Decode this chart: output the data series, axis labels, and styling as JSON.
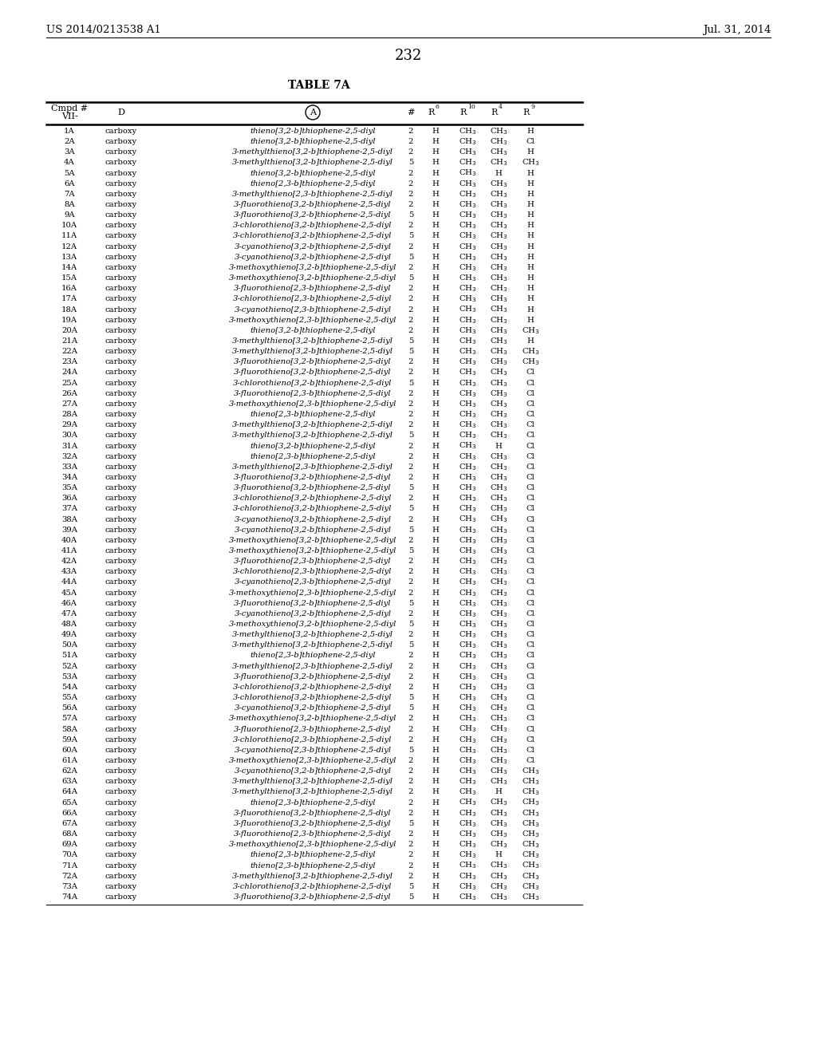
{
  "header_left": "US 2014/0213538 A1",
  "header_right": "Jul. 31, 2014",
  "page_number": "232",
  "table_title": "TABLE 7A",
  "rows": [
    [
      "1A",
      "carboxy",
      "thieno[3,2-b]thiophene-2,5-diyl",
      "2",
      "H",
      "CH3",
      "CH3",
      "H"
    ],
    [
      "2A",
      "carboxy",
      "thieno[3,2-b]thiophene-2,5-diyl",
      "2",
      "H",
      "CH3",
      "CH3",
      "Cl"
    ],
    [
      "3A",
      "carboxy",
      "3-methylthieno[3,2-b]thiophene-2,5-diyl",
      "2",
      "H",
      "CH3",
      "CH3",
      "H"
    ],
    [
      "4A",
      "carboxy",
      "3-methylthieno[3,2-b]thiophene-2,5-diyl",
      "5",
      "H",
      "CH3",
      "CH3",
      "CH3"
    ],
    [
      "5A",
      "carboxy",
      "thieno[3,2-b]thiophene-2,5-diyl",
      "2",
      "H",
      "CH3",
      "H",
      "H"
    ],
    [
      "6A",
      "carboxy",
      "thieno[2,3-b]thiophene-2,5-diyl",
      "2",
      "H",
      "CH3",
      "CH3",
      "H"
    ],
    [
      "7A",
      "carboxy",
      "3-methylthieno[2,3-b]thiophene-2,5-diyl",
      "2",
      "H",
      "CH3",
      "CH3",
      "H"
    ],
    [
      "8A",
      "carboxy",
      "3-fluorothieno[3,2-b]thiophene-2,5-diyl",
      "2",
      "H",
      "CH3",
      "CH3",
      "H"
    ],
    [
      "9A",
      "carboxy",
      "3-fluorothieno[3,2-b]thiophene-2,5-diyl",
      "5",
      "H",
      "CH3",
      "CH3",
      "H"
    ],
    [
      "10A",
      "carboxy",
      "3-chlorothieno[3,2-b]thiophene-2,5-diyl",
      "2",
      "H",
      "CH3",
      "CH3",
      "H"
    ],
    [
      "11A",
      "carboxy",
      "3-chlorothieno[3,2-b]thiophene-2,5-diyl",
      "5",
      "H",
      "CH3",
      "CH3",
      "H"
    ],
    [
      "12A",
      "carboxy",
      "3-cyanothieno[3,2-b]thiophene-2,5-diyl",
      "2",
      "H",
      "CH3",
      "CH3",
      "H"
    ],
    [
      "13A",
      "carboxy",
      "3-cyanothieno[3,2-b]thiophene-2,5-diyl",
      "5",
      "H",
      "CH3",
      "CH3",
      "H"
    ],
    [
      "14A",
      "carboxy",
      "3-methoxythieno[3,2-b]thiophene-2,5-diyl",
      "2",
      "H",
      "CH3",
      "CH3",
      "H"
    ],
    [
      "15A",
      "carboxy",
      "3-methoxythieno[3,2-b]thiophene-2,5-diyl",
      "5",
      "H",
      "CH3",
      "CH3",
      "H"
    ],
    [
      "16A",
      "carboxy",
      "3-fluorothieno[2,3-b]thiophene-2,5-diyl",
      "2",
      "H",
      "CH3",
      "CH3",
      "H"
    ],
    [
      "17A",
      "carboxy",
      "3-chlorothieno[2,3-b]thiophene-2,5-diyl",
      "2",
      "H",
      "CH3",
      "CH3",
      "H"
    ],
    [
      "18A",
      "carboxy",
      "3-cyanothieno[2,3-b]thiophene-2,5-diyl",
      "2",
      "H",
      "CH3",
      "CH3",
      "H"
    ],
    [
      "19A",
      "carboxy",
      "3-methoxythieno[2,3-b]thiophene-2,5-diyl",
      "2",
      "H",
      "CH3",
      "CH3",
      "H"
    ],
    [
      "20A",
      "carboxy",
      "thieno[3,2-b]thiophene-2,5-diyl",
      "2",
      "H",
      "CH3",
      "CH3",
      "CH3"
    ],
    [
      "21A",
      "carboxy",
      "3-methylthieno[3,2-b]thiophene-2,5-diyl",
      "5",
      "H",
      "CH3",
      "CH3",
      "H"
    ],
    [
      "22A",
      "carboxy",
      "3-methylthieno[3,2-b]thiophene-2,5-diyl",
      "5",
      "H",
      "CH3",
      "CH3",
      "CH3"
    ],
    [
      "23A",
      "carboxy",
      "3-fluorothieno[3,2-b]thiophene-2,5-diyl",
      "2",
      "H",
      "CH3",
      "CH3",
      "CH3"
    ],
    [
      "24A",
      "carboxy",
      "3-fluorothieno[3,2-b]thiophene-2,5-diyl",
      "2",
      "H",
      "CH3",
      "CH3",
      "Cl"
    ],
    [
      "25A",
      "carboxy",
      "3-chlorothieno[3,2-b]thiophene-2,5-diyl",
      "5",
      "H",
      "CH3",
      "CH3",
      "Cl"
    ],
    [
      "26A",
      "carboxy",
      "3-fluorothieno[2,3-b]thiophene-2,5-diyl",
      "2",
      "H",
      "CH3",
      "CH3",
      "Cl"
    ],
    [
      "27A",
      "carboxy",
      "3-methoxythieno[2,3-b]thiophene-2,5-diyl",
      "2",
      "H",
      "CH3",
      "CH3",
      "Cl"
    ],
    [
      "28A",
      "carboxy",
      "thieno[2,3-b]thiophene-2,5-diyl",
      "2",
      "H",
      "CH3",
      "CH3",
      "Cl"
    ],
    [
      "29A",
      "carboxy",
      "3-methylthieno[3,2-b]thiophene-2,5-diyl",
      "2",
      "H",
      "CH3",
      "CH3",
      "Cl"
    ],
    [
      "30A",
      "carboxy",
      "3-methylthieno[3,2-b]thiophene-2,5-diyl",
      "5",
      "H",
      "CH3",
      "CH3",
      "Cl"
    ],
    [
      "31A",
      "carboxy",
      "thieno[3,2-b]thiophene-2,5-diyl",
      "2",
      "H",
      "CH3",
      "H",
      "Cl"
    ],
    [
      "32A",
      "carboxy",
      "thieno[2,3-b]thiophene-2,5-diyl",
      "2",
      "H",
      "CH3",
      "CH3",
      "Cl"
    ],
    [
      "33A",
      "carboxy",
      "3-methylthieno[2,3-b]thiophene-2,5-diyl",
      "2",
      "H",
      "CH3",
      "CH3",
      "Cl"
    ],
    [
      "34A",
      "carboxy",
      "3-fluorothieno[3,2-b]thiophene-2,5-diyl",
      "2",
      "H",
      "CH3",
      "CH3",
      "Cl"
    ],
    [
      "35A",
      "carboxy",
      "3-fluorothieno[3,2-b]thiophene-2,5-diyl",
      "5",
      "H",
      "CH3",
      "CH3",
      "Cl"
    ],
    [
      "36A",
      "carboxy",
      "3-chlorothieno[3,2-b]thiophene-2,5-diyl",
      "2",
      "H",
      "CH3",
      "CH3",
      "Cl"
    ],
    [
      "37A",
      "carboxy",
      "3-chlorothieno[3,2-b]thiophene-2,5-diyl",
      "5",
      "H",
      "CH3",
      "CH3",
      "Cl"
    ],
    [
      "38A",
      "carboxy",
      "3-cyanothieno[3,2-b]thiophene-2,5-diyl",
      "2",
      "H",
      "CH3",
      "CH3",
      "Cl"
    ],
    [
      "39A",
      "carboxy",
      "3-cyanothieno[3,2-b]thiophene-2,5-diyl",
      "5",
      "H",
      "CH3",
      "CH3",
      "Cl"
    ],
    [
      "40A",
      "carboxy",
      "3-methoxythieno[3,2-b]thiophene-2,5-diyl",
      "2",
      "H",
      "CH3",
      "CH3",
      "Cl"
    ],
    [
      "41A",
      "carboxy",
      "3-methoxythieno[3,2-b]thiophene-2,5-diyl",
      "5",
      "H",
      "CH3",
      "CH3",
      "Cl"
    ],
    [
      "42A",
      "carboxy",
      "3-fluorothieno[2,3-b]thiophene-2,5-diyl",
      "2",
      "H",
      "CH3",
      "CH3",
      "Cl"
    ],
    [
      "43A",
      "carboxy",
      "3-chlorothieno[2,3-b]thiophene-2,5-diyl",
      "2",
      "H",
      "CH3",
      "CH3",
      "Cl"
    ],
    [
      "44A",
      "carboxy",
      "3-cyanothieno[2,3-b]thiophene-2,5-diyl",
      "2",
      "H",
      "CH3",
      "CH3",
      "Cl"
    ],
    [
      "45A",
      "carboxy",
      "3-methoxythieno[2,3-b]thiophene-2,5-diyl",
      "2",
      "H",
      "CH3",
      "CH3",
      "Cl"
    ],
    [
      "46A",
      "carboxy",
      "3-fluorothieno[3,2-b]thiophene-2,5-diyl",
      "5",
      "H",
      "CH3",
      "CH3",
      "Cl"
    ],
    [
      "47A",
      "carboxy",
      "3-cyanothieno[3,2-b]thiophene-2,5-diyl",
      "2",
      "H",
      "CH3",
      "CH3",
      "Cl"
    ],
    [
      "48A",
      "carboxy",
      "3-methoxythieno[3,2-b]thiophene-2,5-diyl",
      "5",
      "H",
      "CH3",
      "CH3",
      "Cl"
    ],
    [
      "49A",
      "carboxy",
      "3-methylthieno[3,2-b]thiophene-2,5-diyl",
      "2",
      "H",
      "CH3",
      "CH3",
      "Cl"
    ],
    [
      "50A",
      "carboxy",
      "3-methylthieno[3,2-b]thiophene-2,5-diyl",
      "5",
      "H",
      "CH3",
      "CH3",
      "Cl"
    ],
    [
      "51A",
      "carboxy",
      "thieno[2,3-b]thiophene-2,5-diyl",
      "2",
      "H",
      "CH3",
      "CH3",
      "Cl"
    ],
    [
      "52A",
      "carboxy",
      "3-methylthieno[2,3-b]thiophene-2,5-diyl",
      "2",
      "H",
      "CH3",
      "CH3",
      "Cl"
    ],
    [
      "53A",
      "carboxy",
      "3-fluorothieno[3,2-b]thiophene-2,5-diyl",
      "2",
      "H",
      "CH3",
      "CH3",
      "Cl"
    ],
    [
      "54A",
      "carboxy",
      "3-chlorothieno[3,2-b]thiophene-2,5-diyl",
      "2",
      "H",
      "CH3",
      "CH3",
      "Cl"
    ],
    [
      "55A",
      "carboxy",
      "3-chlorothieno[3,2-b]thiophene-2,5-diyl",
      "5",
      "H",
      "CH3",
      "CH3",
      "Cl"
    ],
    [
      "56A",
      "carboxy",
      "3-cyanothieno[3,2-b]thiophene-2,5-diyl",
      "5",
      "H",
      "CH3",
      "CH3",
      "Cl"
    ],
    [
      "57A",
      "carboxy",
      "3-methoxythieno[3,2-b]thiophene-2,5-diyl",
      "2",
      "H",
      "CH3",
      "CH3",
      "Cl"
    ],
    [
      "58A",
      "carboxy",
      "3-fluorothieno[2,3-b]thiophene-2,5-diyl",
      "2",
      "H",
      "CH3",
      "CH3",
      "Cl"
    ],
    [
      "59A",
      "carboxy",
      "3-chlorothieno[2,3-b]thiophene-2,5-diyl",
      "2",
      "H",
      "CH3",
      "CH3",
      "Cl"
    ],
    [
      "60A",
      "carboxy",
      "3-cyanothieno[2,3-b]thiophene-2,5-diyl",
      "5",
      "H",
      "CH3",
      "CH3",
      "Cl"
    ],
    [
      "61A",
      "carboxy",
      "3-methoxythieno[2,3-b]thiophene-2,5-diyl",
      "2",
      "H",
      "CH3",
      "CH3",
      "Cl"
    ],
    [
      "62A",
      "carboxy",
      "3-cyanothieno[3,2-b]thiophene-2,5-diyl",
      "2",
      "H",
      "CH3",
      "CH3",
      "CH3"
    ],
    [
      "63A",
      "carboxy",
      "3-methylthieno[3,2-b]thiophene-2,5-diyl",
      "2",
      "H",
      "CH3",
      "CH3",
      "CH3"
    ],
    [
      "64A",
      "carboxy",
      "3-methylthieno[3,2-b]thiophene-2,5-diyl",
      "2",
      "H",
      "CH3",
      "H",
      "CH3"
    ],
    [
      "65A",
      "carboxy",
      "thieno[2,3-b]thiophene-2,5-diyl",
      "2",
      "H",
      "CH3",
      "CH3",
      "CH3"
    ],
    [
      "66A",
      "carboxy",
      "3-fluorothieno[3,2-b]thiophene-2,5-diyl",
      "2",
      "H",
      "CH3",
      "CH3",
      "CH3"
    ],
    [
      "67A",
      "carboxy",
      "3-fluorothieno[3,2-b]thiophene-2,5-diyl",
      "5",
      "H",
      "CH3",
      "CH3",
      "CH3"
    ],
    [
      "68A",
      "carboxy",
      "3-fluorothieno[2,3-b]thiophene-2,5-diyl",
      "2",
      "H",
      "CH3",
      "CH3",
      "CH3"
    ],
    [
      "69A",
      "carboxy",
      "3-methoxythieno[2,3-b]thiophene-2,5-diyl",
      "2",
      "H",
      "CH3",
      "CH3",
      "CH3"
    ],
    [
      "70A",
      "carboxy",
      "thieno[2,3-b]thiophene-2,5-diyl",
      "2",
      "H",
      "CH3",
      "H",
      "CH3"
    ],
    [
      "71A",
      "carboxy",
      "thieno[2,3-b]thiophene-2,5-diyl",
      "2",
      "H",
      "CH3",
      "CH3",
      "CH3"
    ],
    [
      "72A",
      "carboxy",
      "3-methylthieno[3,2-b]thiophene-2,5-diyl",
      "2",
      "H",
      "CH3",
      "CH3",
      "CH3"
    ],
    [
      "73A",
      "carboxy",
      "3-chlorothieno[3,2-b]thiophene-2,5-diyl",
      "5",
      "H",
      "CH3",
      "CH3",
      "CH3"
    ],
    [
      "74A",
      "carboxy",
      "3-fluorothieno[3,2-b]thiophene-2,5-diyl",
      "5",
      "H",
      "CH3",
      "CH3",
      "CH3"
    ]
  ],
  "background_color": "#ffffff",
  "text_color": "#000000",
  "font_size": 7.2,
  "header_font_size": 8.0,
  "circle_label": "A"
}
